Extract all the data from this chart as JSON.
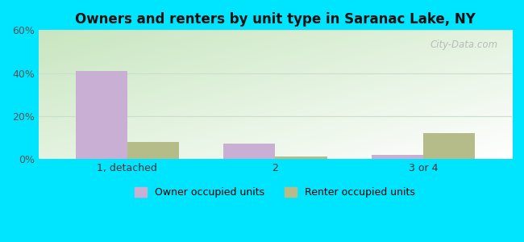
{
  "title": "Owners and renters by unit type in Saranac Lake, NY",
  "categories": [
    "1, detached",
    "2",
    "3 or 4"
  ],
  "owner_values": [
    41,
    7,
    2
  ],
  "renter_values": [
    8,
    1,
    12
  ],
  "owner_color": "#c9afd4",
  "renter_color": "#b5bc8a",
  "ylim": [
    0,
    60
  ],
  "yticks": [
    0,
    20,
    40,
    60
  ],
  "ytick_labels": [
    "0%",
    "20%",
    "40%",
    "60%"
  ],
  "outer_bg": "#00e5ff",
  "bar_width": 0.35,
  "legend_labels": [
    "Owner occupied units",
    "Renter occupied units"
  ],
  "watermark": "City-Data.com",
  "grid_color": "#ccddcc",
  "bg_green": "#c8e6c0",
  "bg_white": "#f5fff5"
}
